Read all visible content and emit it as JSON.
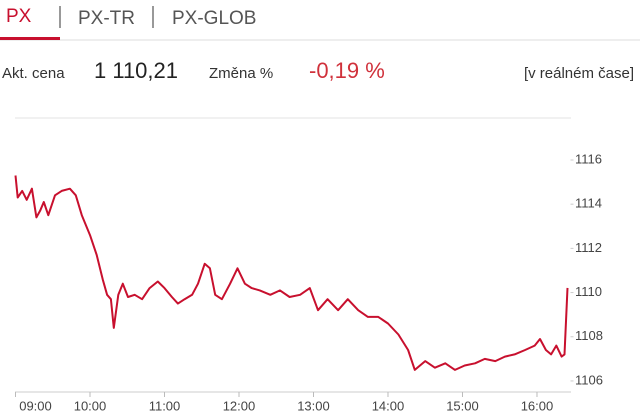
{
  "tabs": [
    "PX",
    "PX-TR",
    "PX-GLOB"
  ],
  "quote": {
    "price_label": "Akt. cena",
    "price": "1 110,21",
    "change_label": "Změna %",
    "change": "-0,19 %",
    "note": "[v reálném čase]"
  },
  "chart_data": {
    "type": "line",
    "x": [
      9.0,
      9.03,
      9.09,
      9.15,
      9.22,
      9.28,
      9.33,
      9.38,
      9.44,
      9.53,
      9.62,
      9.73,
      9.81,
      9.89,
      10.0,
      10.09,
      10.17,
      10.23,
      10.28,
      10.32,
      10.38,
      10.44,
      10.51,
      10.6,
      10.7,
      10.8,
      10.91,
      11.0,
      11.1,
      11.18,
      11.27,
      11.37,
      11.45,
      11.54,
      11.61,
      11.68,
      11.77,
      11.88,
      11.98,
      12.08,
      12.17,
      12.28,
      12.42,
      12.55,
      12.68,
      12.82,
      12.95,
      13.06,
      13.19,
      13.33,
      13.46,
      13.6,
      13.73,
      13.87,
      14.0,
      14.14,
      14.27,
      14.36,
      14.5,
      14.63,
      14.77,
      14.9,
      15.03,
      15.17,
      15.3,
      15.44,
      15.57,
      15.7,
      15.84,
      15.97,
      16.04,
      16.12,
      16.19,
      16.26,
      16.33,
      16.37,
      16.41
    ],
    "series": [
      {
        "name": "PX",
        "color": "#c8102e",
        "values": [
          1115.3,
          1114.3,
          1114.6,
          1114.2,
          1114.7,
          1113.4,
          1113.7,
          1114.1,
          1113.5,
          1114.4,
          1114.6,
          1114.7,
          1114.4,
          1113.5,
          1112.6,
          1111.7,
          1110.6,
          1109.9,
          1109.7,
          1108.4,
          1109.9,
          1110.4,
          1109.8,
          1109.9,
          1109.7,
          1110.2,
          1110.5,
          1110.2,
          1109.8,
          1109.5,
          1109.7,
          1109.9,
          1110.4,
          1111.3,
          1111.1,
          1109.9,
          1109.7,
          1110.4,
          1111.1,
          1110.4,
          1110.2,
          1110.1,
          1109.9,
          1110.1,
          1109.8,
          1109.9,
          1110.2,
          1109.2,
          1109.7,
          1109.2,
          1109.7,
          1109.2,
          1108.9,
          1108.9,
          1108.6,
          1108.1,
          1107.4,
          1106.5,
          1106.9,
          1106.6,
          1106.8,
          1106.5,
          1106.7,
          1106.8,
          1107.0,
          1106.9,
          1107.1,
          1107.2,
          1107.4,
          1107.6,
          1107.9,
          1107.4,
          1107.2,
          1107.6,
          1107.1,
          1107.2,
          1110.21
        ]
      }
    ],
    "xlim": [
      9,
      16.45
    ],
    "xticks": [
      {
        "value": 9,
        "label": "09:00"
      },
      {
        "value": 10,
        "label": "10:00"
      },
      {
        "value": 11,
        "label": "11:00"
      },
      {
        "value": 12,
        "label": "12:00"
      },
      {
        "value": 13,
        "label": "13:00"
      },
      {
        "value": 14,
        "label": "14:00"
      },
      {
        "value": 15,
        "label": "15:00"
      },
      {
        "value": 16,
        "label": "16:00"
      }
    ],
    "ylim": [
      1105.5,
      1117.9
    ],
    "yticks": [
      1106,
      1108,
      1110,
      1112,
      1114,
      1116
    ]
  }
}
